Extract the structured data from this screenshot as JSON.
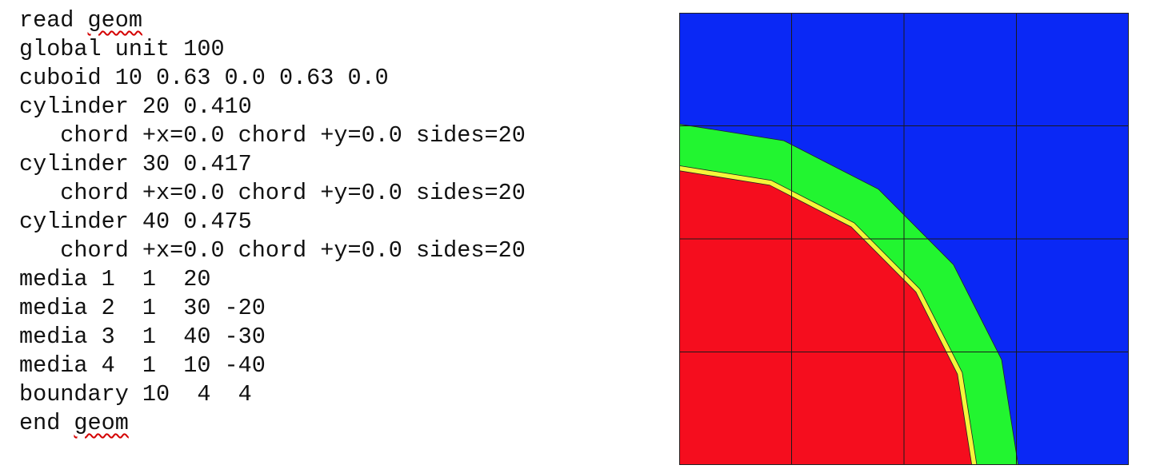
{
  "code": {
    "lines": [
      [
        {
          "text": "read "
        },
        {
          "text": "geom",
          "flagged": true
        }
      ],
      [
        {
          "text": "global unit 100"
        }
      ],
      [
        {
          "text": "cuboid 10 0.63 0.0 0.63 0.0"
        }
      ],
      [
        {
          "text": "cylinder 20 0.410"
        }
      ],
      [
        {
          "text": "   chord +x=0.0 chord +y=0.0 sides=20"
        }
      ],
      [
        {
          "text": "cylinder 30 0.417"
        }
      ],
      [
        {
          "text": "   chord +x=0.0 chord +y=0.0 sides=20"
        }
      ],
      [
        {
          "text": "cylinder 40 0.475"
        }
      ],
      [
        {
          "text": "   chord +x=0.0 chord +y=0.0 sides=20"
        }
      ],
      [
        {
          "text": "media 1  1  20"
        }
      ],
      [
        {
          "text": "media 2  1  30 -20"
        }
      ],
      [
        {
          "text": "media 3  1  40 -30"
        }
      ],
      [
        {
          "text": "media 4  1  10 -40"
        }
      ],
      [
        {
          "text": "boundary 10  4  4"
        }
      ],
      [
        {
          "text": "end "
        },
        {
          "text": "geom",
          "flagged": true
        }
      ]
    ]
  },
  "geometry": {
    "extent": 0.63,
    "sides": 20,
    "grid_divisions": 4,
    "regions": [
      {
        "name": "medium-4",
        "shape": "cuboid",
        "color": "#0a28f5"
      },
      {
        "name": "medium-3",
        "radius": 0.475,
        "color": "#22f530"
      },
      {
        "name": "medium-2",
        "radius": 0.417,
        "color": "#f5f53a"
      },
      {
        "name": "medium-1",
        "radius": 0.41,
        "color": "#f50d1e"
      }
    ],
    "grid_color": "#1a1a1a",
    "outline_color": "#222222"
  }
}
